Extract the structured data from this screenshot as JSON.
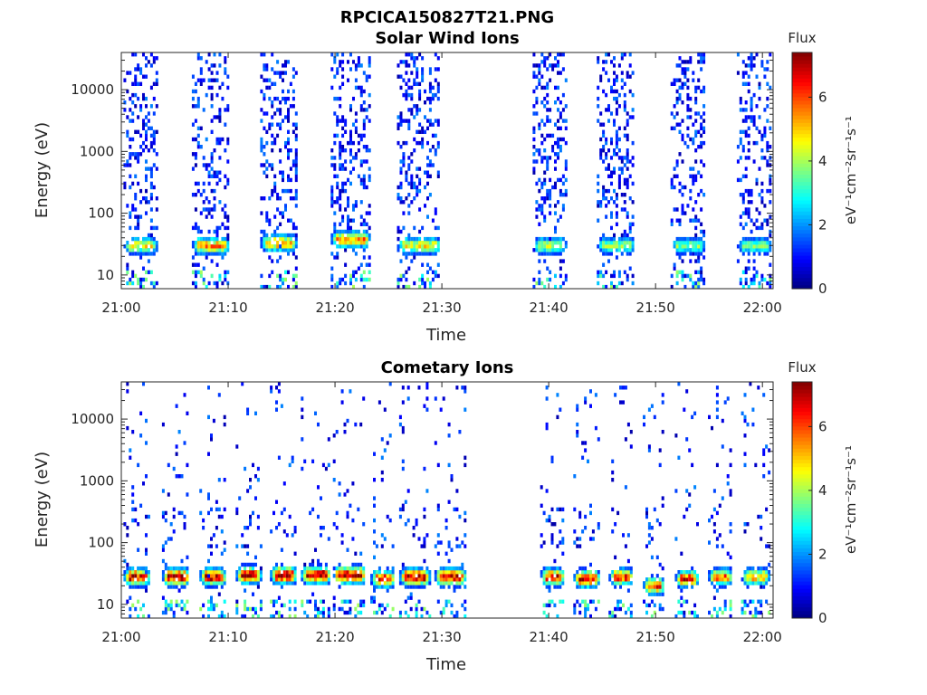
{
  "figure": {
    "title": "RPCICA150827T21.PNG"
  },
  "chart_data": [
    {
      "type": "heatmap",
      "title": "Solar Wind Ions",
      "xlabel": "Time",
      "ylabel": "Energy (eV)",
      "x_ticks": [
        "21:00",
        "21:10",
        "21:20",
        "21:30",
        "21:40",
        "21:50",
        "22:00"
      ],
      "x_tick_minutes": [
        0,
        10,
        20,
        30,
        40,
        50,
        60
      ],
      "xlim_minutes": [
        0,
        61
      ],
      "y_scale": "log",
      "ylim": [
        6,
        40000
      ],
      "y_ticks": [
        10,
        100,
        1000,
        10000
      ],
      "y_tick_labels": [
        "10",
        "100",
        "1000",
        "10000"
      ],
      "colorbar": {
        "label_top": "Flux",
        "unit_label": "eV⁻¹cm⁻²sr⁻¹s⁻¹",
        "range": [
          0,
          7.4
        ],
        "ticks": [
          0,
          2,
          4,
          6
        ],
        "tick_labels": [
          "0",
          "2",
          "4",
          "6"
        ]
      },
      "bursts": [
        {
          "start": 0.2,
          "end": 3.3,
          "peak_energy": 30,
          "peak_flux": 4.5
        },
        {
          "start": 6.6,
          "end": 10.0,
          "peak_energy": 30,
          "peak_flux": 5.2
        },
        {
          "start": 13.0,
          "end": 16.3,
          "peak_energy": 33,
          "peak_flux": 5.4
        },
        {
          "start": 19.6,
          "end": 23.2,
          "peak_energy": 38,
          "peak_flux": 5.4
        },
        {
          "start": 25.8,
          "end": 29.8,
          "peak_energy": 30,
          "peak_flux": 4.5
        },
        {
          "start": 38.5,
          "end": 41.6,
          "peak_energy": 30,
          "peak_flux": 4.2
        },
        {
          "start": 44.5,
          "end": 48.0,
          "peak_energy": 30,
          "peak_flux": 3.8
        },
        {
          "start": 51.4,
          "end": 54.6,
          "peak_energy": 30,
          "peak_flux": 3.6
        },
        {
          "start": 57.6,
          "end": 60.8,
          "peak_energy": 30,
          "peak_flux": 3.6
        }
      ]
    },
    {
      "type": "heatmap",
      "title": "Cometary Ions",
      "xlabel": "Time",
      "ylabel": "Energy (eV)",
      "x_ticks": [
        "21:00",
        "21:10",
        "21:20",
        "21:30",
        "21:40",
        "21:50",
        "22:00"
      ],
      "x_tick_minutes": [
        0,
        10,
        20,
        30,
        40,
        50,
        60
      ],
      "xlim_minutes": [
        0,
        61
      ],
      "y_scale": "log",
      "ylim": [
        6,
        40000
      ],
      "y_ticks": [
        10,
        100,
        1000,
        10000
      ],
      "y_tick_labels": [
        "10",
        "100",
        "1000",
        "10000"
      ],
      "colorbar": {
        "label_top": "Flux",
        "unit_label": "eV⁻¹cm⁻²sr⁻¹s⁻¹",
        "range": [
          0,
          7.4
        ],
        "ticks": [
          0,
          2,
          4,
          6
        ],
        "tick_labels": [
          "0",
          "2",
          "4",
          "6"
        ]
      },
      "bursts": [
        {
          "start": 0.2,
          "end": 2.6,
          "peak_energy": 28,
          "peak_flux": 6.8
        },
        {
          "start": 3.8,
          "end": 6.3,
          "peak_energy": 28,
          "peak_flux": 7.0
        },
        {
          "start": 7.3,
          "end": 9.7,
          "peak_energy": 28,
          "peak_flux": 6.9
        },
        {
          "start": 10.7,
          "end": 13.0,
          "peak_energy": 30,
          "peak_flux": 6.7
        },
        {
          "start": 13.9,
          "end": 16.3,
          "peak_energy": 30,
          "peak_flux": 7.2
        },
        {
          "start": 16.8,
          "end": 19.5,
          "peak_energy": 30,
          "peak_flux": 7.2
        },
        {
          "start": 19.8,
          "end": 22.8,
          "peak_energy": 30,
          "peak_flux": 7.3
        },
        {
          "start": 23.3,
          "end": 25.5,
          "peak_energy": 26,
          "peak_flux": 6.4
        },
        {
          "start": 26.0,
          "end": 28.8,
          "peak_energy": 28,
          "peak_flux": 6.8
        },
        {
          "start": 29.3,
          "end": 32.2,
          "peak_energy": 28,
          "peak_flux": 6.8
        },
        {
          "start": 39.2,
          "end": 41.4,
          "peak_energy": 28,
          "peak_flux": 6.5
        },
        {
          "start": 42.3,
          "end": 44.7,
          "peak_energy": 26,
          "peak_flux": 6.5
        },
        {
          "start": 45.6,
          "end": 47.8,
          "peak_energy": 28,
          "peak_flux": 6.2
        },
        {
          "start": 48.8,
          "end": 50.8,
          "peak_energy": 20,
          "peak_flux": 6.0
        },
        {
          "start": 51.8,
          "end": 53.9,
          "peak_energy": 26,
          "peak_flux": 6.2
        },
        {
          "start": 54.9,
          "end": 57.1,
          "peak_energy": 28,
          "peak_flux": 5.8
        },
        {
          "start": 58.0,
          "end": 60.6,
          "peak_energy": 28,
          "peak_flux": 5.2
        }
      ]
    }
  ]
}
